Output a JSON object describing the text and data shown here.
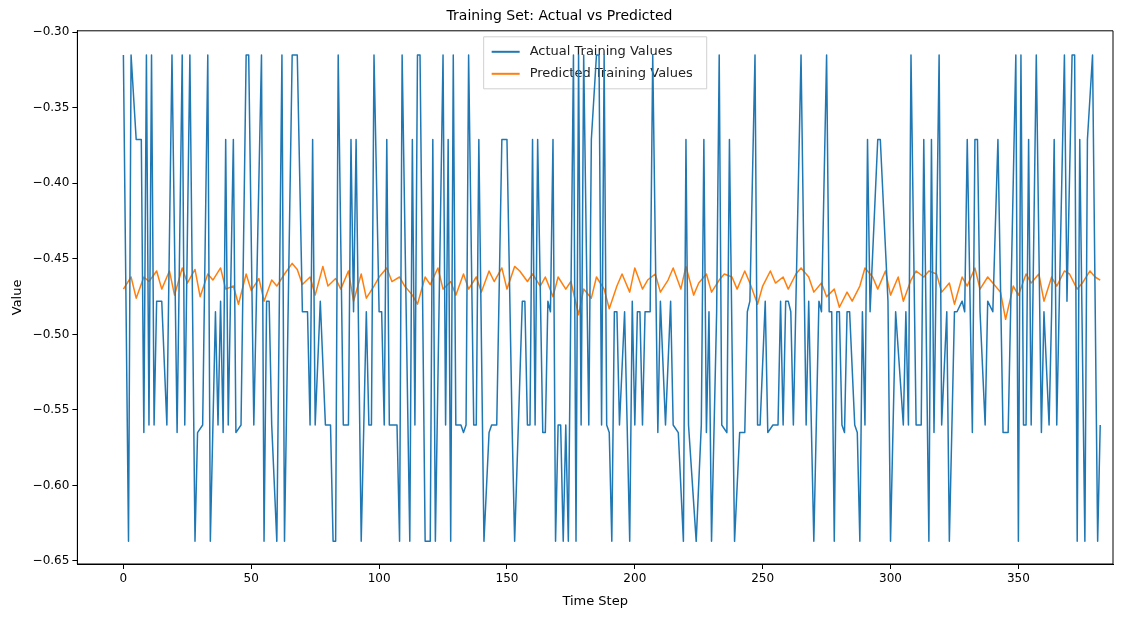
{
  "chart_data": {
    "type": "line",
    "title": "Training Set: Actual vs Predicted",
    "xlabel": "Time Step",
    "ylabel": "Value",
    "xlim": [
      -18,
      387
    ],
    "xticks": [
      0,
      50,
      100,
      150,
      200,
      250,
      300,
      350
    ],
    "ylim": [
      -0.652,
      -0.299
    ],
    "yticks": [
      {
        "value": -0.65,
        "label": "−0.65"
      },
      {
        "value": -0.6,
        "label": "−0.60"
      },
      {
        "value": -0.55,
        "label": "−0.55"
      },
      {
        "value": -0.5,
        "label": "−0.50"
      },
      {
        "value": -0.45,
        "label": "−0.45"
      },
      {
        "value": -0.4,
        "label": "−0.40"
      },
      {
        "value": -0.35,
        "label": "−0.35"
      },
      {
        "value": -0.3,
        "label": "−0.30"
      }
    ],
    "grid": false,
    "legend": "top",
    "marker": "none",
    "line_style": "solid",
    "series": [
      {
        "name": "Actual Training Values",
        "color": "#1f77b4",
        "x": [
          0,
          2,
          3,
          5,
          7,
          8,
          9,
          10,
          11,
          12,
          13,
          15,
          17,
          19,
          21,
          23,
          24,
          26,
          28,
          29,
          31,
          33,
          34,
          36,
          37,
          38,
          39,
          40,
          41,
          43,
          44,
          46,
          48,
          49,
          51,
          54,
          55,
          56,
          57,
          58,
          60,
          62,
          63,
          66,
          68,
          70,
          72,
          73,
          74,
          75,
          77,
          79,
          81,
          82,
          83,
          84,
          86,
          88,
          89,
          90,
          91,
          93,
          95,
          96,
          97,
          98,
          100,
          101,
          102,
          103,
          104,
          107,
          108,
          109,
          112,
          113,
          114,
          115,
          116,
          118,
          120,
          121,
          122,
          125,
          126,
          127,
          128,
          129,
          130,
          132,
          133,
          134,
          135,
          137,
          138,
          139,
          141,
          143,
          144,
          146,
          148,
          150,
          152,
          153,
          156,
          157,
          158,
          159,
          160,
          161,
          162,
          164,
          165,
          166,
          167,
          168,
          169,
          170,
          171,
          172,
          173,
          174,
          176,
          177,
          178,
          179,
          180,
          182,
          183,
          185,
          186,
          187,
          188,
          189,
          190,
          191,
          192,
          193,
          194,
          196,
          197,
          198,
          199,
          200,
          201,
          202,
          203,
          204,
          206,
          207,
          209,
          210,
          212,
          214,
          215,
          217,
          219,
          220,
          221,
          224,
          226,
          227,
          228,
          229,
          230,
          232,
          233,
          234,
          236,
          237,
          239,
          241,
          243,
          244,
          245,
          247,
          248,
          249,
          251,
          252,
          254,
          255,
          256,
          257,
          258,
          259,
          260,
          261,
          262,
          263,
          265,
          267,
          268,
          270,
          272,
          273,
          275,
          276,
          277,
          278,
          279,
          280,
          281,
          282,
          283,
          284,
          286,
          287,
          288,
          289,
          290,
          291,
          292,
          295,
          296,
          299,
          300,
          301,
          302,
          305,
          306,
          307,
          308,
          310,
          312,
          313,
          315,
          316,
          317,
          319,
          320,
          322,
          323,
          325,
          326,
          328,
          329,
          330,
          332,
          333,
          334,
          335,
          337,
          338,
          340,
          342,
          344,
          346,
          349,
          350,
          351,
          352,
          353,
          354,
          355,
          357,
          359,
          360,
          362,
          363,
          364,
          365,
          366,
          368,
          369,
          371,
          372,
          373,
          374,
          376,
          377,
          379,
          381,
          382
        ],
        "values": [
          -0.315,
          -0.637,
          -0.315,
          -0.371,
          -0.371,
          -0.565,
          -0.315,
          -0.56,
          -0.315,
          -0.56,
          -0.478,
          -0.478,
          -0.56,
          -0.315,
          -0.565,
          -0.315,
          -0.56,
          -0.315,
          -0.637,
          -0.565,
          -0.56,
          -0.315,
          -0.637,
          -0.485,
          -0.56,
          -0.478,
          -0.565,
          -0.371,
          -0.56,
          -0.371,
          -0.565,
          -0.56,
          -0.315,
          -0.315,
          -0.56,
          -0.315,
          -0.637,
          -0.478,
          -0.478,
          -0.56,
          -0.637,
          -0.315,
          -0.637,
          -0.315,
          -0.315,
          -0.485,
          -0.485,
          -0.56,
          -0.371,
          -0.56,
          -0.478,
          -0.56,
          -0.56,
          -0.637,
          -0.637,
          -0.315,
          -0.56,
          -0.56,
          -0.371,
          -0.485,
          -0.371,
          -0.637,
          -0.485,
          -0.56,
          -0.56,
          -0.315,
          -0.485,
          -0.485,
          -0.56,
          -0.371,
          -0.56,
          -0.56,
          -0.637,
          -0.315,
          -0.637,
          -0.371,
          -0.56,
          -0.315,
          -0.315,
          -0.637,
          -0.637,
          -0.371,
          -0.637,
          -0.315,
          -0.56,
          -0.371,
          -0.637,
          -0.315,
          -0.56,
          -0.56,
          -0.565,
          -0.56,
          -0.315,
          -0.56,
          -0.56,
          -0.371,
          -0.637,
          -0.565,
          -0.56,
          -0.56,
          -0.371,
          -0.371,
          -0.56,
          -0.637,
          -0.478,
          -0.478,
          -0.56,
          -0.56,
          -0.371,
          -0.56,
          -0.371,
          -0.565,
          -0.565,
          -0.478,
          -0.485,
          -0.371,
          -0.637,
          -0.56,
          -0.56,
          -0.637,
          -0.56,
          -0.637,
          -0.315,
          -0.637,
          -0.315,
          -0.56,
          -0.315,
          -0.56,
          -0.371,
          -0.315,
          -0.315,
          -0.56,
          -0.315,
          -0.56,
          -0.565,
          -0.637,
          -0.485,
          -0.485,
          -0.56,
          -0.485,
          -0.56,
          -0.637,
          -0.478,
          -0.56,
          -0.485,
          -0.485,
          -0.56,
          -0.485,
          -0.485,
          -0.315,
          -0.565,
          -0.478,
          -0.56,
          -0.478,
          -0.56,
          -0.565,
          -0.637,
          -0.371,
          -0.56,
          -0.637,
          -0.56,
          -0.371,
          -0.565,
          -0.485,
          -0.637,
          -0.485,
          -0.315,
          -0.56,
          -0.565,
          -0.371,
          -0.637,
          -0.565,
          -0.565,
          -0.485,
          -0.478,
          -0.315,
          -0.56,
          -0.56,
          -0.478,
          -0.565,
          -0.56,
          -0.56,
          -0.56,
          -0.478,
          -0.56,
          -0.478,
          -0.478,
          -0.485,
          -0.56,
          -0.478,
          -0.315,
          -0.56,
          -0.478,
          -0.637,
          -0.478,
          -0.485,
          -0.315,
          -0.485,
          -0.485,
          -0.637,
          -0.485,
          -0.485,
          -0.56,
          -0.565,
          -0.485,
          -0.485,
          -0.56,
          -0.565,
          -0.637,
          -0.485,
          -0.56,
          -0.371,
          -0.485,
          -0.371,
          -0.371,
          -0.478,
          -0.637,
          -0.56,
          -0.485,
          -0.56,
          -0.485,
          -0.56,
          -0.315,
          -0.56,
          -0.56,
          -0.371,
          -0.637,
          -0.371,
          -0.565,
          -0.315,
          -0.56,
          -0.485,
          -0.637,
          -0.485,
          -0.485,
          -0.478,
          -0.485,
          -0.371,
          -0.565,
          -0.371,
          -0.371,
          -0.485,
          -0.56,
          -0.478,
          -0.485,
          -0.371,
          -0.565,
          -0.565,
          -0.315,
          -0.637,
          -0.315,
          -0.56,
          -0.56,
          -0.371,
          -0.56,
          -0.315,
          -0.565,
          -0.485,
          -0.56,
          -0.485,
          -0.371,
          -0.56,
          -0.478,
          -0.315,
          -0.478,
          -0.315,
          -0.315,
          -0.637,
          -0.371,
          -0.637,
          -0.371,
          -0.315,
          -0.637,
          -0.56
        ]
      },
      {
        "name": "Predicted Training Values",
        "color": "#ff7f0e",
        "x": [
          0,
          3,
          5,
          8,
          10,
          13,
          15,
          18,
          20,
          23,
          25,
          28,
          30,
          33,
          35,
          38,
          40,
          43,
          45,
          48,
          50,
          53,
          55,
          58,
          60,
          63,
          66,
          68,
          70,
          73,
          75,
          78,
          80,
          83,
          85,
          88,
          90,
          93,
          95,
          98,
          100,
          103,
          105,
          108,
          110,
          113,
          115,
          118,
          120,
          123,
          125,
          128,
          130,
          133,
          135,
          138,
          140,
          143,
          145,
          148,
          150,
          153,
          155,
          158,
          160,
          163,
          165,
          168,
          170,
          173,
          175,
          178,
          180,
          183,
          185,
          188,
          190,
          193,
          195,
          198,
          200,
          203,
          205,
          208,
          210,
          213,
          215,
          218,
          220,
          223,
          225,
          228,
          230,
          233,
          235,
          238,
          240,
          243,
          245,
          248,
          250,
          253,
          255,
          258,
          260,
          263,
          265,
          268,
          270,
          273,
          275,
          278,
          280,
          283,
          285,
          288,
          290,
          293,
          295,
          298,
          300,
          303,
          305,
          308,
          310,
          313,
          315,
          318,
          320,
          323,
          325,
          328,
          330,
          333,
          335,
          338,
          340,
          343,
          345,
          348,
          350,
          353,
          355,
          358,
          360,
          363,
          365,
          368,
          370,
          373,
          375,
          378,
          380,
          382
        ],
        "values": [
          -0.47,
          -0.462,
          -0.476,
          -0.462,
          -0.465,
          -0.458,
          -0.47,
          -0.458,
          -0.474,
          -0.456,
          -0.466,
          -0.457,
          -0.475,
          -0.46,
          -0.464,
          -0.456,
          -0.47,
          -0.468,
          -0.48,
          -0.46,
          -0.471,
          -0.463,
          -0.478,
          -0.464,
          -0.468,
          -0.46,
          -0.453,
          -0.457,
          -0.467,
          -0.462,
          -0.474,
          -0.455,
          -0.468,
          -0.463,
          -0.47,
          -0.458,
          -0.478,
          -0.46,
          -0.476,
          -0.468,
          -0.462,
          -0.456,
          -0.465,
          -0.462,
          -0.468,
          -0.474,
          -0.48,
          -0.462,
          -0.467,
          -0.456,
          -0.47,
          -0.465,
          -0.474,
          -0.46,
          -0.47,
          -0.462,
          -0.472,
          -0.458,
          -0.465,
          -0.456,
          -0.47,
          -0.455,
          -0.458,
          -0.465,
          -0.46,
          -0.468,
          -0.462,
          -0.475,
          -0.462,
          -0.47,
          -0.465,
          -0.487,
          -0.47,
          -0.476,
          -0.462,
          -0.47,
          -0.483,
          -0.468,
          -0.46,
          -0.472,
          -0.456,
          -0.47,
          -0.464,
          -0.46,
          -0.472,
          -0.464,
          -0.456,
          -0.47,
          -0.455,
          -0.474,
          -0.466,
          -0.46,
          -0.472,
          -0.464,
          -0.46,
          -0.462,
          -0.47,
          -0.458,
          -0.466,
          -0.48,
          -0.468,
          -0.458,
          -0.466,
          -0.462,
          -0.47,
          -0.46,
          -0.456,
          -0.462,
          -0.472,
          -0.466,
          -0.475,
          -0.47,
          -0.482,
          -0.472,
          -0.478,
          -0.468,
          -0.456,
          -0.462,
          -0.47,
          -0.458,
          -0.474,
          -0.462,
          -0.478,
          -0.464,
          -0.458,
          -0.462,
          -0.458,
          -0.46,
          -0.472,
          -0.466,
          -0.48,
          -0.462,
          -0.468,
          -0.456,
          -0.47,
          -0.462,
          -0.466,
          -0.472,
          -0.49,
          -0.468,
          -0.474,
          -0.46,
          -0.466,
          -0.46,
          -0.478,
          -0.462,
          -0.468,
          -0.458,
          -0.46,
          -0.47,
          -0.466,
          -0.458,
          -0.462,
          -0.464
        ]
      }
    ]
  }
}
